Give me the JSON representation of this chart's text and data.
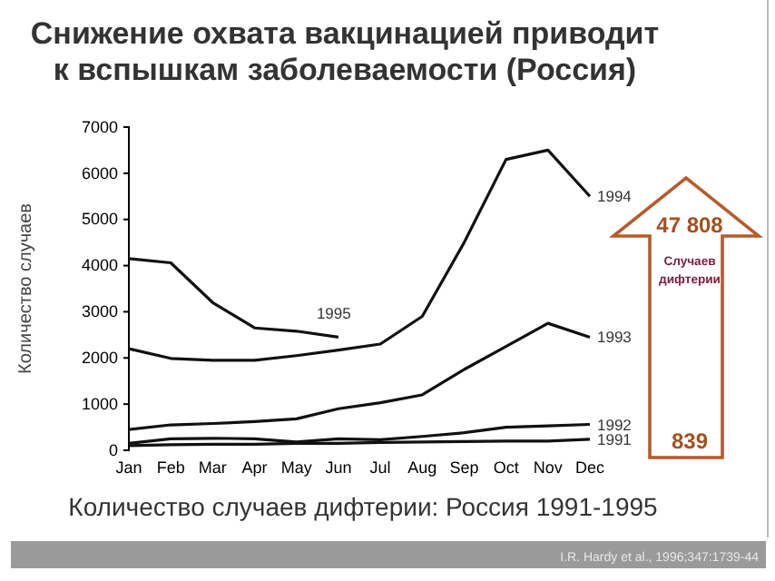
{
  "chart_data": {
    "type": "line",
    "title": "Снижение охвата вакцинацией приводит\nк вспышкам заболеваемости (Россия)",
    "ylabel": "Количество случаев",
    "categories": [
      "Jan",
      "Feb",
      "Mar",
      "Apr",
      "May",
      "Jun",
      "Jul",
      "Aug",
      "Sep",
      "Oct",
      "Nov",
      "Dec"
    ],
    "series": [
      {
        "name": "1994",
        "color": "#111111",
        "values": [
          2200,
          1990,
          1950,
          1950,
          2050,
          2170,
          2300,
          2900,
          4500,
          6300,
          6500,
          5500
        ]
      },
      {
        "name": "1995",
        "color": "#111111",
        "values": [
          4150,
          4060,
          3200,
          2650,
          2580,
          2450,
          null,
          null,
          null,
          null,
          null,
          null
        ]
      },
      {
        "name": "1993",
        "color": "#111111",
        "values": [
          450,
          550,
          580,
          620,
          680,
          900,
          1030,
          1200,
          1750,
          2250,
          2750,
          2450
        ]
      },
      {
        "name": "1992",
        "color": "#111111",
        "values": [
          150,
          250,
          260,
          250,
          180,
          250,
          230,
          300,
          380,
          500,
          530,
          560
        ]
      },
      {
        "name": "1991",
        "color": "#111111",
        "values": [
          100,
          120,
          130,
          130,
          150,
          150,
          170,
          180,
          190,
          200,
          200,
          240
        ]
      }
    ],
    "ylim": [
      0,
      7000
    ],
    "yticks": [
      0,
      1000,
      2000,
      3000,
      4000,
      5000,
      6000,
      7000
    ],
    "grid": false,
    "legend": false,
    "marker": "none",
    "line_style": "solid",
    "annotations": [
      "47 808",
      "Случаев дифтерии",
      "839",
      "Количество случаев дифтерии: Россия 1991-1995",
      "I.R. Hardy et al., 1996;347:1739-44"
    ]
  }
}
